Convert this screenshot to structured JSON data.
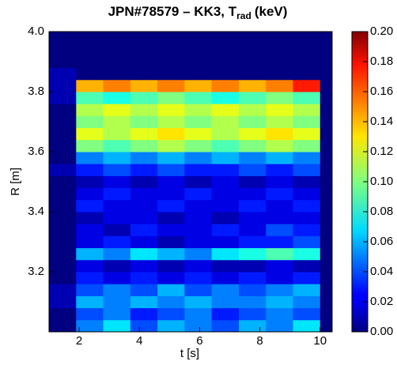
{
  "chart_data": {
    "type": "heatmap",
    "title": "JPN#78579 – KK3, T",
    "title_subscript": "rad",
    "title_suffix": "(keV)",
    "xlabel": "t [s]",
    "ylabel": "R [m]",
    "xlim": [
      1.0,
      10.4
    ],
    "ylim": [
      3.0,
      4.0
    ],
    "xticks": [
      2,
      4,
      6,
      8,
      10
    ],
    "yticks": [
      3.2,
      3.4,
      3.6,
      3.8,
      {
        "value": 4.0,
        "label": "4.0"
      }
    ],
    "clim": [
      0,
      0.2
    ],
    "cticks": [
      {
        "value": 0,
        "label": "0.00"
      },
      0.02,
      0.04,
      0.06,
      0.08,
      {
        "value": 0.1,
        "label": "0.10"
      },
      0.12,
      0.14,
      0.16,
      0.18,
      {
        "value": 0.2,
        "label": "0.20"
      }
    ],
    "colormap": "jet",
    "x_edges": [
      1.0,
      1.9,
      2.8,
      3.7,
      4.6,
      5.5,
      6.4,
      7.3,
      8.2,
      9.1,
      10.0,
      10.4
    ],
    "y_edges": [
      3.0,
      3.04,
      3.08,
      3.12,
      3.16,
      3.2,
      3.24,
      3.28,
      3.32,
      3.36,
      3.4,
      3.44,
      3.48,
      3.52,
      3.56,
      3.6,
      3.64,
      3.68,
      3.72,
      3.76,
      3.8,
      3.84,
      3.88,
      3.92,
      3.96,
      4.0
    ],
    "z": [
      [
        0,
        0.05,
        0.07,
        0.04,
        0.06,
        0.05,
        0.04,
        0.06,
        0.05,
        0.07,
        0
      ],
      [
        0,
        0.04,
        0.05,
        0.03,
        0.04,
        0.05,
        0.03,
        0.04,
        0.05,
        0.04,
        0
      ],
      [
        0.01,
        0.06,
        0.05,
        0.06,
        0.05,
        0.06,
        0.05,
        0.05,
        0.06,
        0.05,
        0
      ],
      [
        0.01,
        0.04,
        0.05,
        0.04,
        0.06,
        0.04,
        0.05,
        0.04,
        0.05,
        0.06,
        0
      ],
      [
        0,
        0.03,
        0.02,
        0.03,
        0.02,
        0.03,
        0.02,
        0.03,
        0.02,
        0.03,
        0
      ],
      [
        0,
        0.02,
        0.01,
        0.02,
        0.01,
        0.02,
        0.01,
        0.01,
        0.02,
        0.01,
        0
      ],
      [
        0,
        0.06,
        0.05,
        0.07,
        0.06,
        0.05,
        0.07,
        0.08,
        0.09,
        0.08,
        0
      ],
      [
        0,
        0.02,
        0.03,
        0.02,
        0.01,
        0.02,
        0.02,
        0.03,
        0.03,
        0.04,
        0
      ],
      [
        0,
        0.02,
        0.01,
        0.03,
        0.02,
        0.02,
        0.03,
        0.02,
        0.04,
        0.03,
        0
      ],
      [
        0,
        0.01,
        0.02,
        0.02,
        0.01,
        0.02,
        0.01,
        0.02,
        0.02,
        0.02,
        0
      ],
      [
        0,
        0.03,
        0.02,
        0.02,
        0.03,
        0.02,
        0.02,
        0.03,
        0.02,
        0.03,
        0
      ],
      [
        0,
        0.02,
        0.03,
        0.02,
        0.02,
        0.03,
        0.02,
        0.02,
        0.03,
        0.02,
        0
      ],
      [
        0,
        0.01,
        0.02,
        0.01,
        0.02,
        0.01,
        0.02,
        0.01,
        0.02,
        0.01,
        0
      ],
      [
        0.01,
        0.03,
        0.04,
        0.03,
        0.04,
        0.03,
        0.03,
        0.04,
        0.03,
        0.04,
        0
      ],
      [
        0,
        0.05,
        0.06,
        0.05,
        0.06,
        0.05,
        0.06,
        0.05,
        0.06,
        0.05,
        0
      ],
      [
        0,
        0.1,
        0.09,
        0.1,
        0.11,
        0.1,
        0.09,
        0.1,
        0.11,
        0.1,
        0
      ],
      [
        0,
        0.12,
        0.11,
        0.12,
        0.13,
        0.12,
        0.11,
        0.12,
        0.13,
        0.12,
        0
      ],
      [
        0,
        0.1,
        0.11,
        0.1,
        0.11,
        0.1,
        0.11,
        0.1,
        0.11,
        0.1,
        0
      ],
      [
        0,
        0.11,
        0.12,
        0.11,
        0.12,
        0.11,
        0.12,
        0.11,
        0.12,
        0.11,
        0
      ],
      [
        0.01,
        0.09,
        0.08,
        0.09,
        0.1,
        0.09,
        0.08,
        0.09,
        0.1,
        0.09,
        0
      ],
      [
        0.01,
        0.14,
        0.15,
        0.14,
        0.15,
        0.14,
        0.15,
        0.14,
        0.15,
        0.17,
        0
      ],
      [
        0.01,
        0,
        0,
        0,
        0,
        0,
        0,
        0,
        0,
        0,
        0
      ],
      [
        0,
        0,
        0,
        0,
        0,
        0,
        0,
        0,
        0,
        0,
        0
      ],
      [
        0,
        0,
        0,
        0,
        0,
        0,
        0,
        0,
        0,
        0,
        0
      ],
      [
        0,
        0,
        0,
        0,
        0,
        0,
        0,
        0,
        0,
        0,
        0
      ]
    ]
  }
}
